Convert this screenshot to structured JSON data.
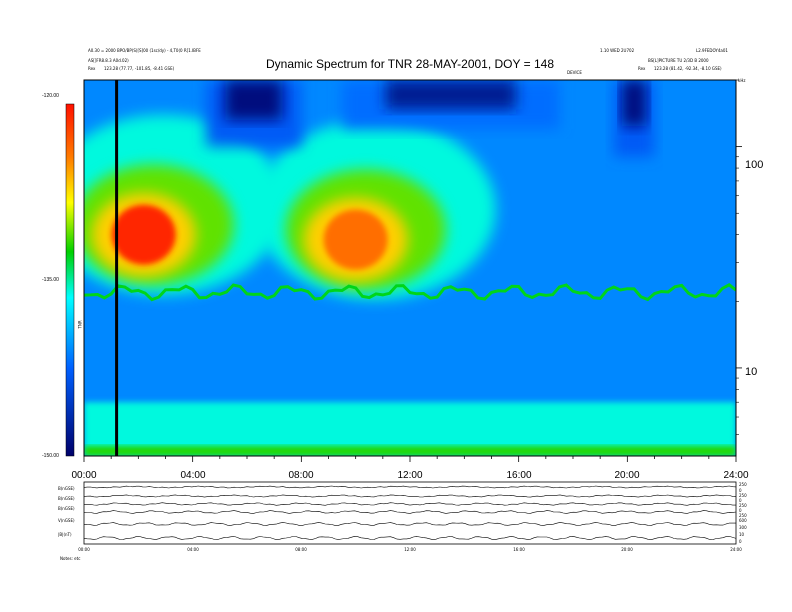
{
  "header": {
    "title": "Dynamic Spectrum for TNR 28-MAY-2001, DOY = 148",
    "left_line1": "A0.30 = 2000 BPO/BP(S)[S]00 (1sc/dy) - 4,T0(0 R[1.IBFE",
    "left_line2": "AS[]FR8.8.3 A0d.02)",
    "left_line3_label": "Rex",
    "left_line3_value": "123.28 (77.77, -101.85, -8.41 GSE)",
    "right_line1": "1.10 WED 2U702",
    "right_line1b": "L2.9FEDOY4a01",
    "right_line2": "BS[L]PICTURE TU 2/3D B 2000",
    "right_line3_label": "Rex",
    "right_line3_value": "123.28 (81.42, -92.34, -8.10 GSE)",
    "mid_label": "DEVICE",
    "unit_label": "kHz"
  },
  "colorbar": {
    "ticks": [
      "-120.00",
      "-135.00",
      "-150.00"
    ],
    "side_label": "TNR"
  },
  "spectrogram": {
    "y_ticks": [
      "100",
      "10"
    ]
  },
  "bottom_panel": {
    "rows": [
      "B(nGSE)",
      "B(nGSE)",
      "B(nGSE)",
      "V(nGSE)",
      "|B|(nT)"
    ],
    "right_ticks": [
      "250",
      "0",
      "250",
      "0",
      "250",
      "0",
      "250",
      "600",
      "300",
      "10",
      "0"
    ],
    "time_labels": [
      "00:00",
      "04:00",
      "08:00",
      "12:00",
      "16:00",
      "20:00",
      "24:00"
    ],
    "footer": "Notes: etc"
  },
  "chart_data": {
    "type": "heatmap",
    "title": "Dynamic Spectrum for TNR 28-MAY-2001, DOY = 148",
    "xlabel": "",
    "ylabel": "kHz",
    "x_tick_labels": [
      "00:00",
      "04:00",
      "08:00",
      "12:00",
      "16:00",
      "20:00",
      "24:00"
    ],
    "x_range_hours": [
      0,
      24
    ],
    "y_scale": "log",
    "y_range_khz": [
      4,
      200
    ],
    "y_ticks_khz": [
      100,
      10
    ],
    "color_scale": {
      "min": -150.0,
      "max": -120.0,
      "ticks": [
        -120.0,
        -135.0,
        -150.0
      ],
      "colormap": "rainbow"
    },
    "background_level": -141,
    "grid": false,
    "features": [
      {
        "kind": "bright_blob",
        "hour": 2.2,
        "khz": 40,
        "level": -121
      },
      {
        "kind": "bright_blob",
        "hour": 10.0,
        "khz": 38,
        "level": -124
      },
      {
        "kind": "dark_band",
        "hour_start": 4.5,
        "hour_end": 8.0,
        "khz_min": 100,
        "level": -149
      },
      {
        "kind": "dark_band",
        "hour_start": 9.5,
        "hour_end": 17.5,
        "khz_min": 120,
        "level": -148
      },
      {
        "kind": "dark_band",
        "hour_start": 19.5,
        "hour_end": 21.0,
        "khz_min": 90,
        "level": -149
      },
      {
        "kind": "plasma_line",
        "khz": 22,
        "level": -133
      },
      {
        "kind": "low_freq_band",
        "khz_max": 7,
        "level": -136
      },
      {
        "kind": "marker_line",
        "hour": 1.2
      }
    ]
  }
}
